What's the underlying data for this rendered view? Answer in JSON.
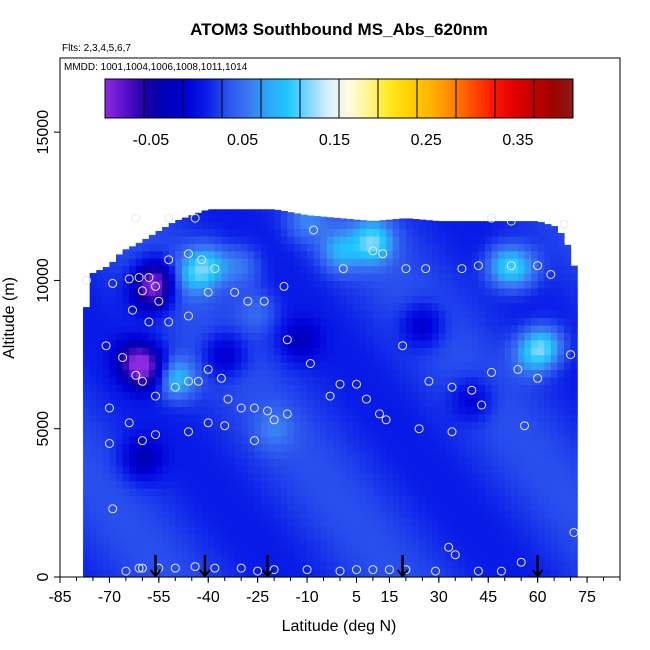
{
  "chart_data": {
    "type": "heatmap",
    "title": "ATOM3 Southbound MS_Abs_620nm",
    "flights_label": "Flts: 2,3,4,5,6,7",
    "mmdd_label": "MMDD: 1001,1004,1006,1008,1011,1014",
    "xlabel": "Latitude (deg N)",
    "ylabel": "Altitude (m)",
    "xlim": [
      -85,
      85
    ],
    "ylim": [
      0,
      17500
    ],
    "x_ticks": [
      -85,
      -70,
      -55,
      -40,
      -25,
      -10,
      5,
      15,
      30,
      45,
      60,
      75
    ],
    "x_tick_labels": [
      "-85",
      "-70",
      "-55",
      "-40",
      "-25",
      "-10",
      "5",
      "15",
      "30",
      "45",
      "60",
      "75"
    ],
    "y_ticks": [
      0,
      5000,
      10000,
      15000
    ],
    "y_tick_labels": [
      "0",
      "5000",
      "10000",
      "15000"
    ],
    "colorbar": {
      "range": [
        -0.1,
        0.41
      ],
      "ticks": [
        -0.05,
        0.05,
        0.15,
        0.25,
        0.35
      ],
      "tick_labels": [
        "-0.05",
        "0.05",
        "0.15",
        "0.25",
        "0.35"
      ],
      "colors": [
        "#8a2be2",
        "#5a10cc",
        "#1a00a8",
        "#0000b4",
        "#0000d8",
        "#0a1ee8",
        "#2a52ee",
        "#3a76f2",
        "#2ea6f6",
        "#1ec8ff",
        "#7fd6ff",
        "#d8f1ff",
        "#fffbe0",
        "#fff48a",
        "#ffe81e",
        "#ffd000",
        "#ffb400",
        "#ff8800",
        "#ff5000",
        "#ff1a00",
        "#e80000",
        "#c40000",
        "#a00000",
        "#8a1a1a"
      ]
    },
    "coverage": {
      "lat_range": [
        -78,
        72
      ],
      "top_altitude_by_lat": [
        [
          -78,
          8000
        ],
        [
          -76,
          10200
        ],
        [
          -70,
          10500
        ],
        [
          -66,
          11000
        ],
        [
          -62,
          11200
        ],
        [
          -56,
          11600
        ],
        [
          -50,
          12000
        ],
        [
          -40,
          12400
        ],
        [
          -20,
          12400
        ],
        [
          -10,
          12200
        ],
        [
          10,
          12000
        ],
        [
          20,
          12100
        ],
        [
          30,
          12000
        ],
        [
          40,
          12000
        ],
        [
          60,
          12000
        ],
        [
          66,
          11800
        ],
        [
          70,
          11000
        ],
        [
          72,
          10000
        ]
      ]
    },
    "background_value": 0.02,
    "blobs": [
      {
        "lat": -56,
        "alt": 10000,
        "value": -0.08
      },
      {
        "lat": -62,
        "alt": 7300,
        "value": -0.06
      },
      {
        "lat": -58,
        "alt": 7000,
        "value": -0.05
      },
      {
        "lat": -50,
        "alt": 6700,
        "value": 0.1
      },
      {
        "lat": -40,
        "alt": 10500,
        "value": 0.09
      },
      {
        "lat": -45,
        "alt": 10200,
        "value": 0.07
      },
      {
        "lat": -30,
        "alt": 10500,
        "value": 0.06
      },
      {
        "lat": -10,
        "alt": 12000,
        "value": 0.06
      },
      {
        "lat": 0,
        "alt": 11000,
        "value": 0.08
      },
      {
        "lat": 10,
        "alt": 11300,
        "value": 0.11
      },
      {
        "lat": 50,
        "alt": 10500,
        "value": 0.09
      },
      {
        "lat": 55,
        "alt": 10400,
        "value": 0.07
      },
      {
        "lat": 62,
        "alt": 7800,
        "value": 0.1
      },
      {
        "lat": 58,
        "alt": 7500,
        "value": 0.07
      },
      {
        "lat": -20,
        "alt": 5000,
        "value": 0.05
      },
      {
        "lat": -25,
        "alt": 9000,
        "value": 0.05
      },
      {
        "lat": -58,
        "alt": 9500,
        "value": -0.03
      },
      {
        "lat": -60,
        "alt": 4000,
        "value": -0.03
      },
      {
        "lat": -35,
        "alt": 7500,
        "value": -0.03
      },
      {
        "lat": -12,
        "alt": 8000,
        "value": -0.02
      },
      {
        "lat": 25,
        "alt": 8500,
        "value": -0.03
      },
      {
        "lat": 40,
        "alt": 6000,
        "value": -0.02
      }
    ],
    "sample_points": [
      [
        -77,
        10000
      ],
      [
        -69,
        9900
      ],
      [
        -64,
        10050
      ],
      [
        -61,
        10100
      ],
      [
        -58,
        10100
      ],
      [
        -56,
        9800
      ],
      [
        -60,
        9650
      ],
      [
        -52,
        10700
      ],
      [
        -46,
        10900
      ],
      [
        -42,
        10700
      ],
      [
        -38,
        10400
      ],
      [
        -40,
        9600
      ],
      [
        -32,
        9600
      ],
      [
        -28,
        9300
      ],
      [
        -23,
        9300
      ],
      [
        -17,
        9800
      ],
      [
        -8,
        11700
      ],
      [
        1,
        10400
      ],
      [
        10,
        11000
      ],
      [
        13,
        10900
      ],
      [
        20,
        10400
      ],
      [
        26,
        10400
      ],
      [
        37,
        10400
      ],
      [
        42,
        10500
      ],
      [
        52,
        10500
      ],
      [
        60,
        10500
      ],
      [
        64,
        10200
      ],
      [
        52,
        12000
      ],
      [
        46,
        12100
      ],
      [
        68,
        11900
      ],
      [
        -62,
        12100
      ],
      [
        -52,
        12100
      ],
      [
        -44,
        12100
      ],
      [
        -55,
        9300
      ],
      [
        -63,
        9000
      ],
      [
        -58,
        8600
      ],
      [
        -52,
        8600
      ],
      [
        -46,
        8800
      ],
      [
        -71,
        7800
      ],
      [
        -66,
        7400
      ],
      [
        -62,
        6800
      ],
      [
        -60,
        6600
      ],
      [
        -56,
        6100
      ],
      [
        -50,
        6400
      ],
      [
        -46,
        6600
      ],
      [
        -43,
        6600
      ],
      [
        -40,
        7000
      ],
      [
        -36,
        6700
      ],
      [
        -34,
        6000
      ],
      [
        -30,
        5700
      ],
      [
        -26,
        5700
      ],
      [
        -22,
        5600
      ],
      [
        -20,
        5300
      ],
      [
        -16,
        8000
      ],
      [
        -9,
        7200
      ],
      [
        0,
        6500
      ],
      [
        5,
        6500
      ],
      [
        8,
        6000
      ],
      [
        12,
        5500
      ],
      [
        19,
        7800
      ],
      [
        27,
        6600
      ],
      [
        34,
        6400
      ],
      [
        40,
        6300
      ],
      [
        46,
        6900
      ],
      [
        54,
        7000
      ],
      [
        60,
        6700
      ],
      [
        70,
        7500
      ],
      [
        -70,
        5700
      ],
      [
        -64,
        5200
      ],
      [
        -60,
        4600
      ],
      [
        -56,
        4800
      ],
      [
        -46,
        4900
      ],
      [
        -40,
        5200
      ],
      [
        -35,
        5100
      ],
      [
        -26,
        4600
      ],
      [
        -16,
        5500
      ],
      [
        -3,
        6100
      ],
      [
        14,
        5300
      ],
      [
        24,
        5000
      ],
      [
        34,
        4900
      ],
      [
        43,
        5800
      ],
      [
        56,
        5100
      ],
      [
        -70,
        4500
      ],
      [
        71,
        1500
      ],
      [
        -69,
        2300
      ],
      [
        -60,
        300
      ],
      [
        -55,
        300
      ],
      [
        -50,
        300
      ],
      [
        -44,
        350
      ],
      [
        -38,
        300
      ],
      [
        -30,
        300
      ],
      [
        -25,
        200
      ],
      [
        -20,
        250
      ],
      [
        -10,
        250
      ],
      [
        0,
        200
      ],
      [
        5,
        250
      ],
      [
        10,
        250
      ],
      [
        15,
        250
      ],
      [
        20,
        250
      ],
      [
        29,
        200
      ],
      [
        35,
        750
      ],
      [
        42,
        200
      ],
      [
        49,
        200
      ],
      [
        55,
        500
      ],
      [
        -61,
        300
      ],
      [
        -65,
        200
      ],
      [
        33,
        1000
      ]
    ],
    "arrow_lats": [
      -56,
      -41,
      -22,
      19,
      60
    ]
  }
}
